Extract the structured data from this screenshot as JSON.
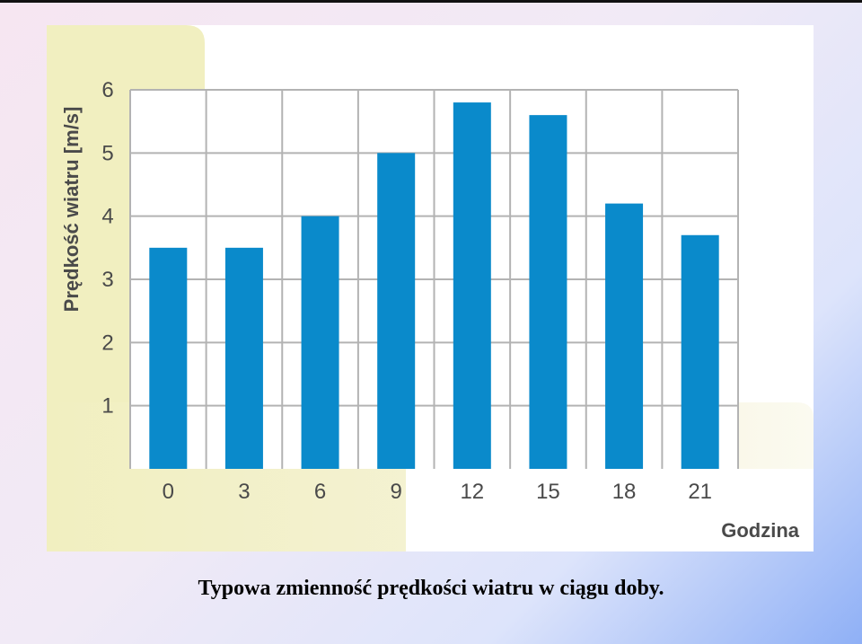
{
  "caption": "Typowa zmienność prędkości wiatru w ciągu doby.",
  "colors": {
    "bar": "#0a8acb",
    "grid": "#b3b3b3",
    "yellow_panel": "#f1efc0",
    "label": "#4a4a4a"
  },
  "chart_data": {
    "type": "bar",
    "categories": [
      "0",
      "3",
      "6",
      "9",
      "12",
      "15",
      "18",
      "21"
    ],
    "values": [
      3.5,
      3.5,
      4.0,
      5.0,
      5.8,
      5.6,
      4.2,
      3.7
    ],
    "yticks": [
      "1",
      "2",
      "3",
      "4",
      "5",
      "6"
    ],
    "ylim": [
      0,
      6
    ],
    "xlabel": "Godzina",
    "ylabel": "Prędkość wiatru [m/s]",
    "grid": true
  }
}
